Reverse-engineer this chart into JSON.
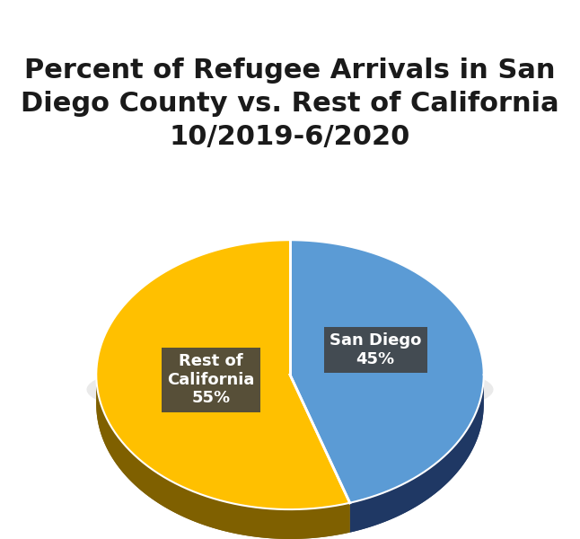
{
  "title": "Percent of Refugee Arrivals in San\nDiego County vs. Rest of California\n10/2019-6/2020",
  "slices": [
    45,
    55
  ],
  "labels": [
    "San Diego\n45%",
    "Rest of\nCalifornia\n55%"
  ],
  "colors": [
    "#5B9BD5",
    "#FFC000"
  ],
  "shadow_colors": [
    "#1F3864",
    "#7F6000"
  ],
  "background_color": "#FFFFFF",
  "title_fontsize": 22,
  "label_fontsize": 13
}
